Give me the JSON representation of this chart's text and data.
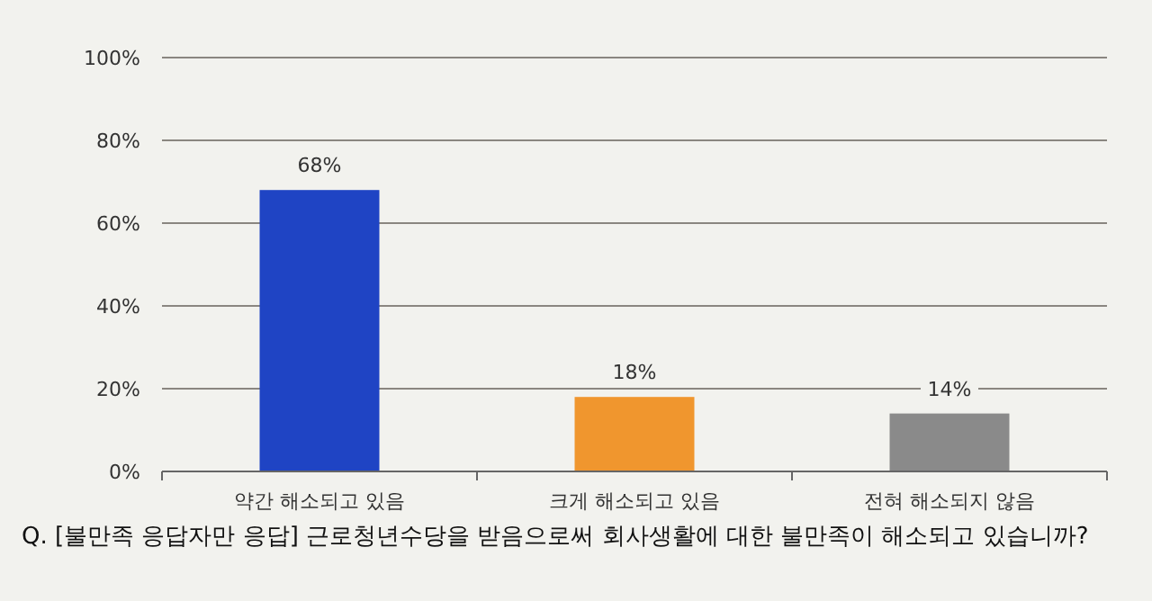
{
  "chart_data": {
    "type": "bar",
    "categories": [
      "약간 해소되고 있음",
      "크게 해소되고 있음",
      "전혀 해소되지 않음"
    ],
    "values": [
      68,
      18,
      14
    ],
    "colors": [
      "#1f44c4",
      "#f0962e",
      "#8a8a8a"
    ],
    "value_labels": [
      "68%",
      "18%",
      "14%"
    ],
    "ylim": [
      0,
      100
    ],
    "yticks": [
      {
        "value": 0,
        "label": "0%"
      },
      {
        "value": 20,
        "label": "20%"
      },
      {
        "value": 40,
        "label": "40%"
      },
      {
        "value": 60,
        "label": "60%"
      },
      {
        "value": 80,
        "label": "80%"
      },
      {
        "value": 100,
        "label": "100%"
      }
    ],
    "grid": "y",
    "annotations": [
      "Q. [불만족 응답자만 응답] 근로청년수당을 받음으로써 회사생활에 대한 불만족이 해소되고 있습니까?"
    ]
  }
}
